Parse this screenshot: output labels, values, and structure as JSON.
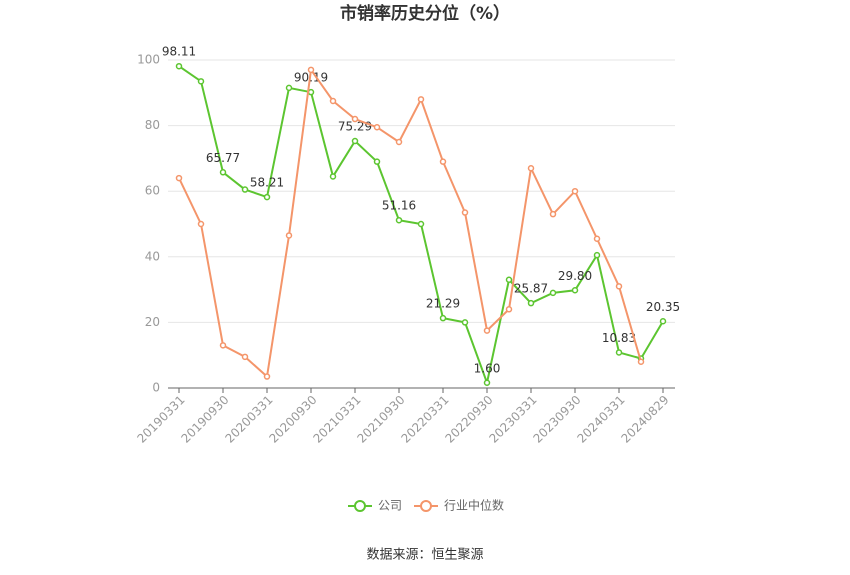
{
  "chart_data": {
    "type": "line",
    "title": "市销率历史分位（%）",
    "categories": [
      "20190331",
      null,
      "20190930",
      null,
      "20200331",
      null,
      "20200930",
      null,
      "20210331",
      null,
      "20210930",
      null,
      "20220331",
      null,
      "20220930",
      null,
      "20230331",
      null,
      "20230930",
      null,
      "20240331",
      null,
      "20240829"
    ],
    "series": [
      {
        "name": "公司",
        "color": "#5cc530",
        "values": [
          98.11,
          93.5,
          65.77,
          60.5,
          58.21,
          91.5,
          90.19,
          64.5,
          75.29,
          69,
          51.16,
          50,
          21.29,
          20,
          1.6,
          33,
          25.87,
          29,
          29.8,
          40.5,
          10.83,
          9,
          20.35
        ],
        "value_labels": [
          "98.11",
          null,
          "65.77",
          null,
          "58.21",
          null,
          "90.19",
          null,
          "75.29",
          null,
          "51.16",
          null,
          "21.29",
          null,
          "1.60",
          null,
          "25.87",
          null,
          "29.80",
          null,
          "10.83",
          null,
          "20.35"
        ]
      },
      {
        "name": "行业中位数",
        "color": "#f4956a",
        "values": [
          64,
          50,
          13,
          9.5,
          3.5,
          46.5,
          97,
          87.5,
          82,
          79.5,
          75,
          88,
          69,
          53.5,
          17.5,
          24,
          67,
          53,
          60,
          45.5,
          31,
          8,
          null
        ]
      }
    ],
    "ylim": [
      0,
      100
    ],
    "yticks": [
      0,
      20,
      40,
      60,
      80,
      100
    ],
    "grid": true,
    "legend": "bottom",
    "source": "数据来源：恒生聚源"
  }
}
